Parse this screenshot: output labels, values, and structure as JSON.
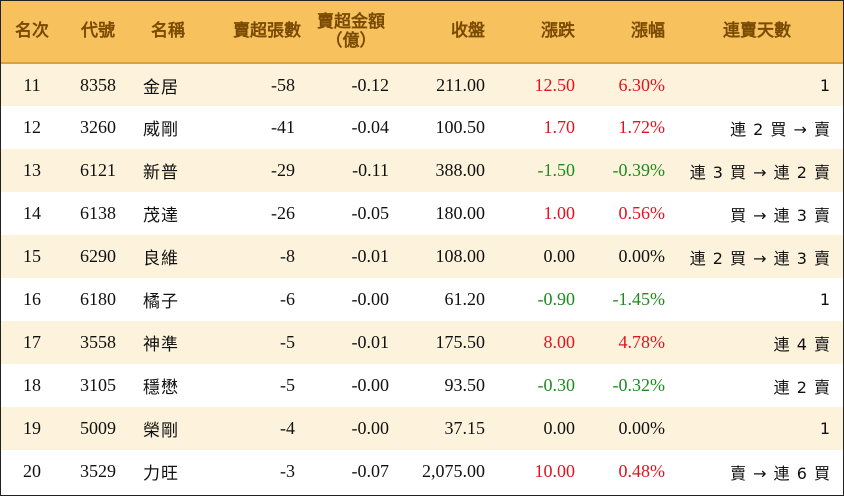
{
  "headers": {
    "rank": "名次",
    "code": "代號",
    "name": "名稱",
    "net_sell_lots": "賣超張數",
    "net_sell_amount_line1": "賣超金額",
    "net_sell_amount_line2": "（億）",
    "close": "收盤",
    "change": "漲跌",
    "change_pct": "漲幅",
    "streak": "連賣天數"
  },
  "rows": [
    {
      "rank": "11",
      "code": "8358",
      "name": "金居",
      "lots": "-58",
      "amount": "-0.12",
      "close": "211.00",
      "change": "12.50",
      "pct": "6.30%",
      "dir": "up",
      "streak": "1"
    },
    {
      "rank": "12",
      "code": "3260",
      "name": "威剛",
      "lots": "-41",
      "amount": "-0.04",
      "close": "100.50",
      "change": "1.70",
      "pct": "1.72%",
      "dir": "up",
      "streak": "連 2 買 → 賣"
    },
    {
      "rank": "13",
      "code": "6121",
      "name": "新普",
      "lots": "-29",
      "amount": "-0.11",
      "close": "388.00",
      "change": "-1.50",
      "pct": "-0.39%",
      "dir": "down",
      "streak": "連 3 買 → 連 2 賣"
    },
    {
      "rank": "14",
      "code": "6138",
      "name": "茂達",
      "lots": "-26",
      "amount": "-0.05",
      "close": "180.00",
      "change": "1.00",
      "pct": "0.56%",
      "dir": "up",
      "streak": "買 → 連 3 賣"
    },
    {
      "rank": "15",
      "code": "6290",
      "name": "良維",
      "lots": "-8",
      "amount": "-0.01",
      "close": "108.00",
      "change": "0.00",
      "pct": "0.00%",
      "dir": "flat",
      "streak": "連 2 買 → 連 3 賣"
    },
    {
      "rank": "16",
      "code": "6180",
      "name": "橘子",
      "lots": "-6",
      "amount": "-0.00",
      "close": "61.20",
      "change": "-0.90",
      "pct": "-1.45%",
      "dir": "down",
      "streak": "1"
    },
    {
      "rank": "17",
      "code": "3558",
      "name": "神準",
      "lots": "-5",
      "amount": "-0.01",
      "close": "175.50",
      "change": "8.00",
      "pct": "4.78%",
      "dir": "up",
      "streak": "連 4 賣"
    },
    {
      "rank": "18",
      "code": "3105",
      "name": "穩懋",
      "lots": "-5",
      "amount": "-0.00",
      "close": "93.50",
      "change": "-0.30",
      "pct": "-0.32%",
      "dir": "down",
      "streak": "連 2 賣"
    },
    {
      "rank": "19",
      "code": "5009",
      "name": "榮剛",
      "lots": "-4",
      "amount": "-0.00",
      "close": "37.15",
      "change": "0.00",
      "pct": "0.00%",
      "dir": "flat",
      "streak": "1"
    },
    {
      "rank": "20",
      "code": "3529",
      "name": "力旺",
      "lots": "-3",
      "amount": "-0.07",
      "close": "2,075.00",
      "change": "10.00",
      "pct": "0.48%",
      "dir": "up",
      "streak": "賣 → 連 6 買"
    }
  ],
  "colors": {
    "header_bg": "#f7c25e",
    "header_text": "#7a4a00",
    "stripe_bg": "#fdf3dc",
    "up": "#e0141e",
    "down": "#1f8a1f"
  }
}
